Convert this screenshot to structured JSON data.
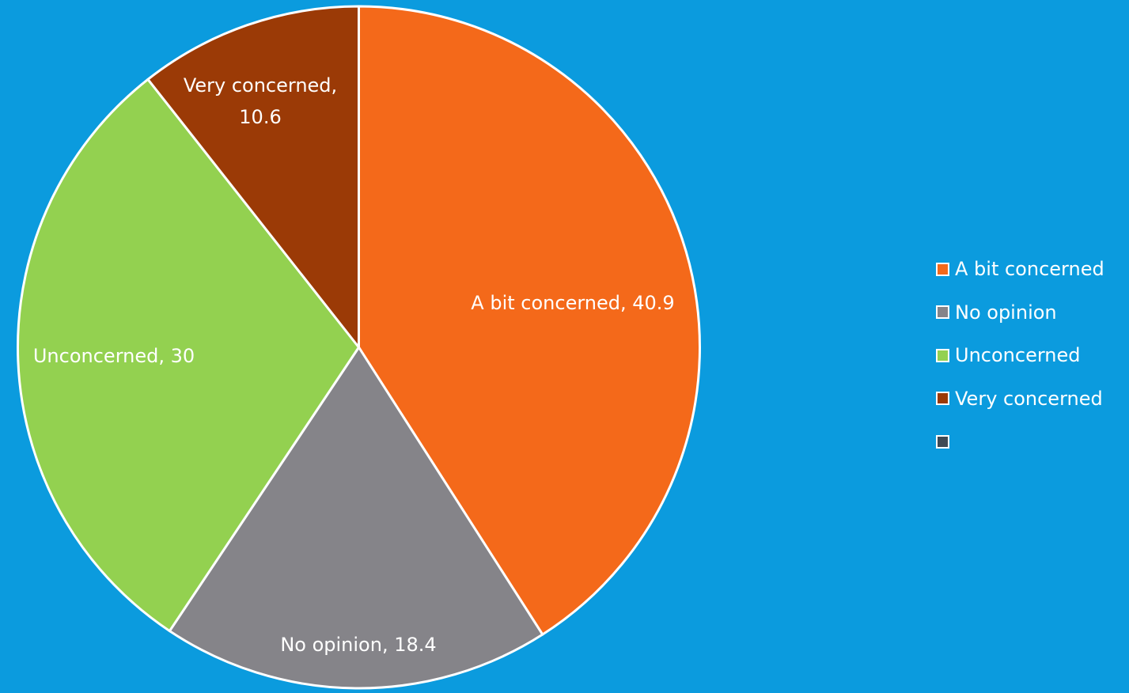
{
  "background_color": "#0B9BDE",
  "chart_data": {
    "type": "pie",
    "title": "",
    "start_angle_deg": 0,
    "direction": "clockwise",
    "slice_border_color": "#FFFFFF",
    "slices": [
      {
        "label": "A bit concerned",
        "value": 40.9,
        "color": "#F4691A",
        "data_label": "A bit concerned, 40.9"
      },
      {
        "label": "No opinion",
        "value": 18.4,
        "color": "#858489",
        "data_label": "No opinion, 18.4"
      },
      {
        "label": "Unconcerned",
        "value": 30,
        "color": "#93D150",
        "data_label": "Unconcerned, 30"
      },
      {
        "label": "Very concerned",
        "value": 10.6,
        "color": "#9B3A06",
        "data_label_lines": [
          "Very concerned,",
          "10.6"
        ]
      }
    ],
    "legend": {
      "position": "right",
      "entries": [
        {
          "label": "A bit concerned",
          "color": "#F4691A"
        },
        {
          "label": "No opinion",
          "color": "#858489"
        },
        {
          "label": "Unconcerned",
          "color": "#93D150"
        },
        {
          "label": "Very concerned",
          "color": "#9B3A06"
        },
        {
          "label": "",
          "color": "#3F4A55"
        }
      ]
    }
  }
}
